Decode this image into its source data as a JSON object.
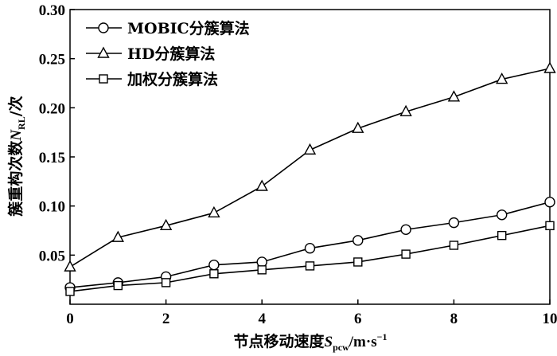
{
  "chart_data": {
    "type": "line",
    "x": [
      0,
      1,
      2,
      3,
      4,
      5,
      6,
      7,
      8,
      9,
      10
    ],
    "xlim": [
      0,
      10
    ],
    "ylim": [
      0,
      0.3
    ],
    "xticks": [
      "0",
      "2",
      "4",
      "6",
      "8",
      "10"
    ],
    "yticks": [
      "0.05",
      "0.10",
      "0.15",
      "0.20",
      "0.25",
      "0.30"
    ],
    "ylabel": "簇重构次数N_RL/次",
    "xlabel": "节点移动速度S_pcw/m·s⁻¹",
    "ylabel_parts": {
      "before": "簇重构次数",
      "var": "N",
      "sub": "RL",
      "after": "/次"
    },
    "xlabel_parts": {
      "before": "节点移动速度",
      "var": "S",
      "sub": "pcw",
      "after": "/m·s",
      "sup": "−1"
    },
    "grid": false,
    "legend_position": "top-left",
    "series": [
      {
        "name": "MOBIC分簇算法",
        "marker": "circle",
        "values": [
          0.017,
          0.022,
          0.028,
          0.04,
          0.043,
          0.057,
          0.065,
          0.076,
          0.083,
          0.091,
          0.104
        ]
      },
      {
        "name": "HD分簇算法",
        "marker": "triangle",
        "values": [
          0.038,
          0.068,
          0.08,
          0.093,
          0.12,
          0.157,
          0.179,
          0.196,
          0.211,
          0.229,
          0.24
        ]
      },
      {
        "name": "加权分簇算法",
        "marker": "square",
        "values": [
          0.013,
          0.019,
          0.022,
          0.031,
          0.035,
          0.039,
          0.043,
          0.051,
          0.06,
          0.07,
          0.08
        ]
      }
    ]
  }
}
